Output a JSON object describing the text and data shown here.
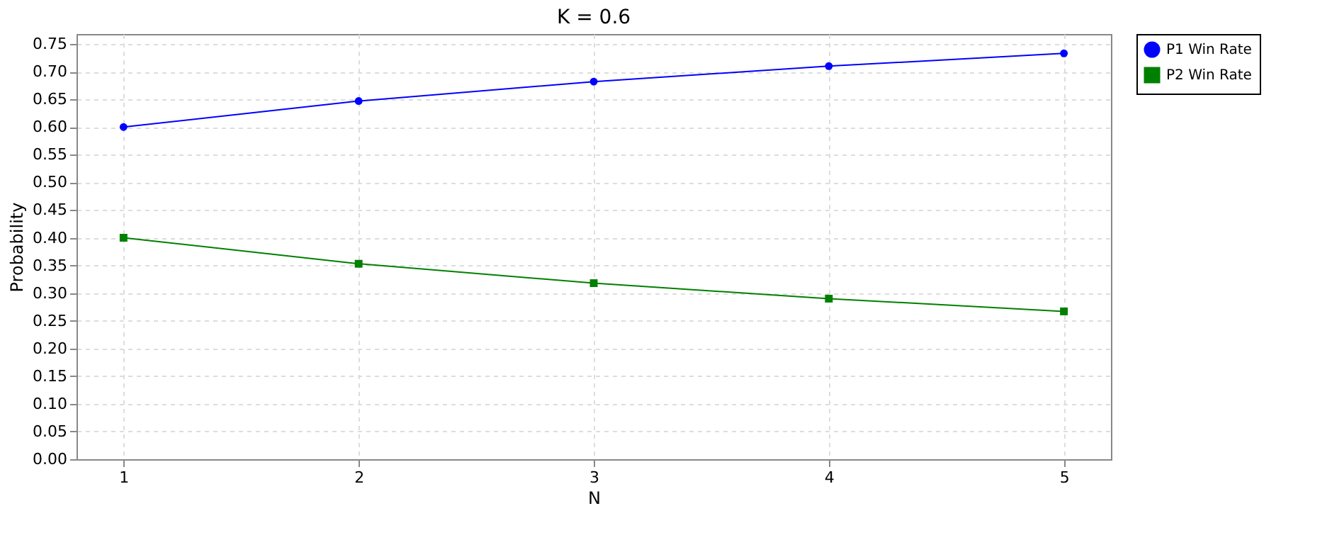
{
  "chart_data": {
    "type": "line",
    "title": "K = 0.6",
    "xlabel": "N",
    "ylabel": "Probability",
    "x": [
      1,
      2,
      3,
      4,
      5
    ],
    "series": [
      {
        "name": "P1 Win Rate",
        "color": "#0000ff",
        "marker": "circle",
        "values": [
          0.6,
          0.647,
          0.682,
          0.71,
          0.733
        ]
      },
      {
        "name": "P2 Win Rate",
        "color": "#008000",
        "marker": "square",
        "values": [
          0.4,
          0.353,
          0.318,
          0.29,
          0.267
        ]
      }
    ],
    "xlim": [
      0.8,
      5.2
    ],
    "xticks": [
      1,
      2,
      3,
      4,
      5
    ],
    "ylim": [
      0,
      0.768
    ],
    "yticks": [
      {
        "value": 0,
        "label": "0.00"
      },
      {
        "value": 0.05,
        "label": "0.05"
      },
      {
        "value": 0.1,
        "label": "0.10"
      },
      {
        "value": 0.15,
        "label": "0.15"
      },
      {
        "value": 0.2,
        "label": "0.20"
      },
      {
        "value": 0.25,
        "label": "0.25"
      },
      {
        "value": 0.3,
        "label": "0.30"
      },
      {
        "value": 0.35,
        "label": "0.35"
      },
      {
        "value": 0.4,
        "label": "0.40"
      },
      {
        "value": 0.45,
        "label": "0.45"
      },
      {
        "value": 0.5,
        "label": "0.50"
      },
      {
        "value": 0.55,
        "label": "0.55"
      },
      {
        "value": 0.6,
        "label": "0.60"
      },
      {
        "value": 0.65,
        "label": "0.65"
      },
      {
        "value": 0.7,
        "label": "0.70"
      },
      {
        "value": 0.75,
        "label": "0.75"
      }
    ],
    "grid": true,
    "legend": "right",
    "line_style": "solid"
  }
}
